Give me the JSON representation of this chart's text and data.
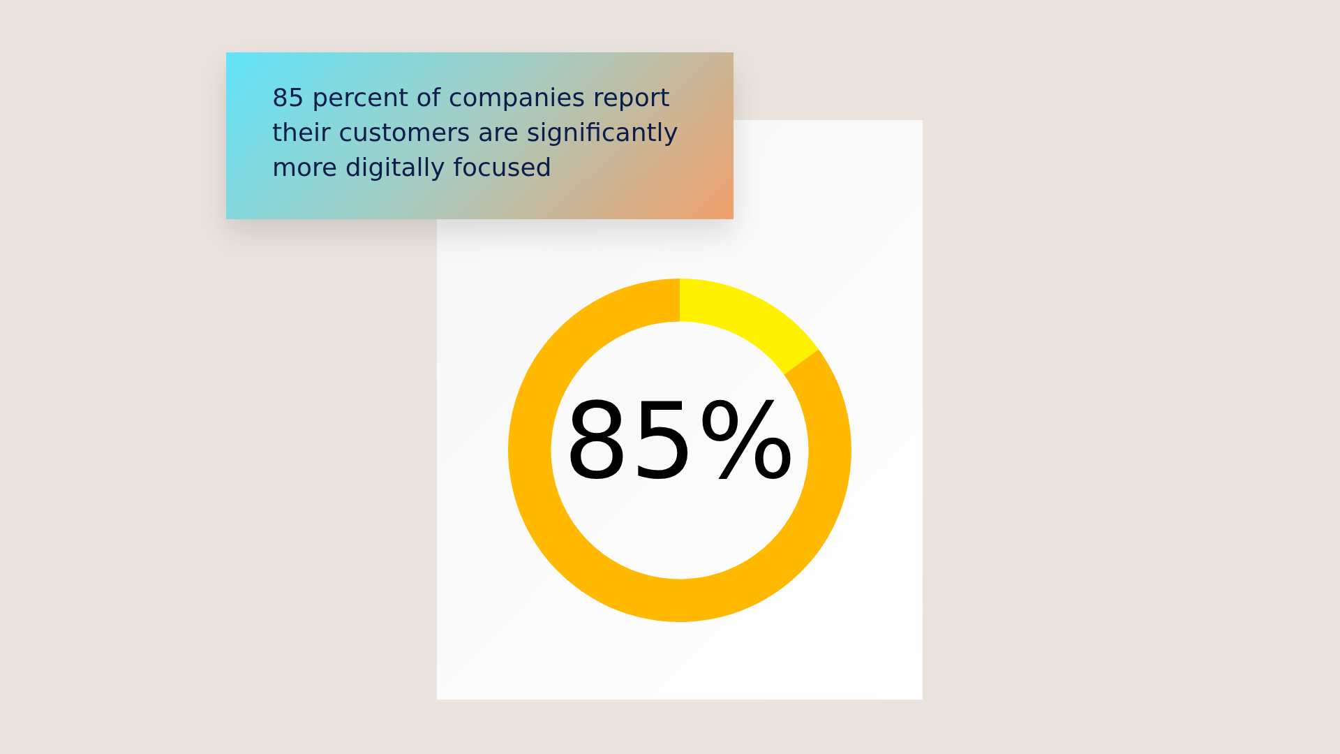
{
  "chart_data": {
    "type": "donut",
    "title": "85 percent of companies report their customers are significantly more digitally focused",
    "categories": [
      null,
      null
    ],
    "values": [
      15,
      85
    ],
    "colors": [
      "#fff100",
      "#ffb900"
    ],
    "value_labels": [
      null,
      "85%"
    ],
    "legend": false
  }
}
